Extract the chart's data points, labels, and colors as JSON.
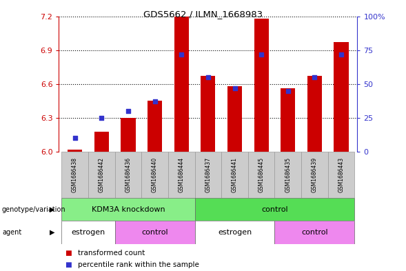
{
  "title": "GDS5662 / ILMN_1668983",
  "samples": [
    "GSM1686438",
    "GSM1686442",
    "GSM1686436",
    "GSM1686440",
    "GSM1686444",
    "GSM1686437",
    "GSM1686441",
    "GSM1686445",
    "GSM1686435",
    "GSM1686439",
    "GSM1686443"
  ],
  "transformed_counts": [
    6.02,
    6.18,
    6.3,
    6.45,
    7.2,
    6.67,
    6.58,
    7.18,
    6.56,
    6.67,
    6.97
  ],
  "percentile_ranks": [
    10,
    25,
    30,
    37,
    72,
    55,
    47,
    72,
    45,
    55,
    72
  ],
  "ylim": [
    6.0,
    7.2
  ],
  "y_ticks": [
    6.0,
    6.3,
    6.6,
    6.9,
    7.2
  ],
  "right_yticks": [
    0,
    25,
    50,
    75,
    100
  ],
  "bar_color": "#cc0000",
  "dot_color": "#3333cc",
  "genotype_groups": [
    {
      "label": "KDM3A knockdown",
      "start": 0,
      "end": 5,
      "color": "#88ee88"
    },
    {
      "label": "control",
      "start": 5,
      "end": 11,
      "color": "#55dd55"
    }
  ],
  "agent_groups": [
    {
      "label": "estrogen",
      "start": 0,
      "end": 2,
      "color": "#ffffff"
    },
    {
      "label": "control",
      "start": 2,
      "end": 5,
      "color": "#ee88ee"
    },
    {
      "label": "estrogen",
      "start": 5,
      "end": 8,
      "color": "#ffffff"
    },
    {
      "label": "control",
      "start": 8,
      "end": 11,
      "color": "#ee88ee"
    }
  ],
  "legend_items": [
    {
      "label": "transformed count",
      "color": "#cc0000"
    },
    {
      "label": "percentile rank within the sample",
      "color": "#3333cc"
    }
  ],
  "xlabel_genotype": "genotype/variation",
  "xlabel_agent": "agent"
}
